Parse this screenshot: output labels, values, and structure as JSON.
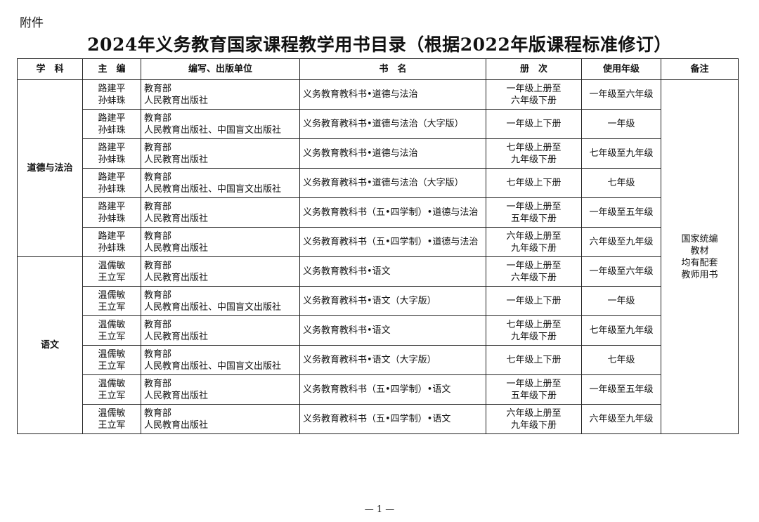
{
  "attachment_label": "附件",
  "title": "2024年义务教育国家课程教学用书目录（根据2022年版课程标准修订）",
  "headers": [
    "学　科",
    "主　编",
    "编写、出版单位",
    "书　名",
    "册　次",
    "使用年级",
    "备注"
  ],
  "groups": [
    {
      "subject": "道德与法治",
      "rows": [
        {
          "editors": [
            "路建平",
            "孙蚌珠"
          ],
          "publishers": [
            "教育部",
            "人民教育出版社"
          ],
          "book": "义务教育教科书•道德与法治",
          "volumes": [
            "一年级上册至",
            "六年级下册"
          ],
          "grades": "一年级至六年级"
        },
        {
          "editors": [
            "路建平",
            "孙蚌珠"
          ],
          "publishers": [
            "教育部",
            "人民教育出版社、中国盲文出版社"
          ],
          "book": "义务教育教科书•道德与法治（大字版）",
          "volumes": [
            "一年级上下册"
          ],
          "grades": "一年级"
        },
        {
          "editors": [
            "路建平",
            "孙蚌珠"
          ],
          "publishers": [
            "教育部",
            "人民教育出版社"
          ],
          "book": "义务教育教科书•道德与法治",
          "volumes": [
            "七年级上册至",
            "九年级下册"
          ],
          "grades": "七年级至九年级"
        },
        {
          "editors": [
            "路建平",
            "孙蚌珠"
          ],
          "publishers": [
            "教育部",
            "人民教育出版社、中国盲文出版社"
          ],
          "book": "义务教育教科书•道德与法治（大字版）",
          "volumes": [
            "七年级上下册"
          ],
          "grades": "七年级"
        },
        {
          "editors": [
            "路建平",
            "孙蚌珠"
          ],
          "publishers": [
            "教育部",
            "人民教育出版社"
          ],
          "book": "义务教育教科书（五•四学制）•道德与法治",
          "volumes": [
            "一年级上册至",
            "五年级下册"
          ],
          "grades": "一年级至五年级"
        },
        {
          "editors": [
            "路建平",
            "孙蚌珠"
          ],
          "publishers": [
            "教育部",
            "人民教育出版社"
          ],
          "book": "义务教育教科书（五•四学制）•道德与法治",
          "volumes": [
            "六年级上册至",
            "九年级下册"
          ],
          "grades": "六年级至九年级"
        }
      ]
    },
    {
      "subject": "语文",
      "rows": [
        {
          "editors": [
            "温儒敏",
            "王立军"
          ],
          "publishers": [
            "教育部",
            "人民教育出版社"
          ],
          "book": "义务教育教科书•语文",
          "volumes": [
            "一年级上册至",
            "六年级下册"
          ],
          "grades": "一年级至六年级"
        },
        {
          "editors": [
            "温儒敏",
            "王立军"
          ],
          "publishers": [
            "教育部",
            "人民教育出版社、中国盲文出版社"
          ],
          "book": "义务教育教科书•语文（大字版）",
          "volumes": [
            "一年级上下册"
          ],
          "grades": "一年级"
        },
        {
          "editors": [
            "温儒敏",
            "王立军"
          ],
          "publishers": [
            "教育部",
            "人民教育出版社"
          ],
          "book": "义务教育教科书•语文",
          "volumes": [
            "七年级上册至",
            "九年级下册"
          ],
          "grades": "七年级至九年级"
        },
        {
          "editors": [
            "温儒敏",
            "王立军"
          ],
          "publishers": [
            "教育部",
            "人民教育出版社、中国盲文出版社"
          ],
          "book": "义务教育教科书•语文（大字版）",
          "volumes": [
            "七年级上下册"
          ],
          "grades": "七年级"
        },
        {
          "editors": [
            "温儒敏",
            "王立军"
          ],
          "publishers": [
            "教育部",
            "人民教育出版社"
          ],
          "book": "义务教育教科书（五•四学制）•语文",
          "volumes": [
            "一年级上册至",
            "五年级下册"
          ],
          "grades": "一年级至五年级"
        },
        {
          "editors": [
            "温儒敏",
            "王立军"
          ],
          "publishers": [
            "教育部",
            "人民教育出版社"
          ],
          "book": "义务教育教科书（五•四学制）•语文",
          "volumes": [
            "六年级上册至",
            "九年级下册"
          ],
          "grades": "六年级至九年级"
        }
      ]
    }
  ],
  "remarks": [
    "国家统编",
    "教材",
    "均有配套",
    "教师用书"
  ],
  "page_number": "— 1 —"
}
